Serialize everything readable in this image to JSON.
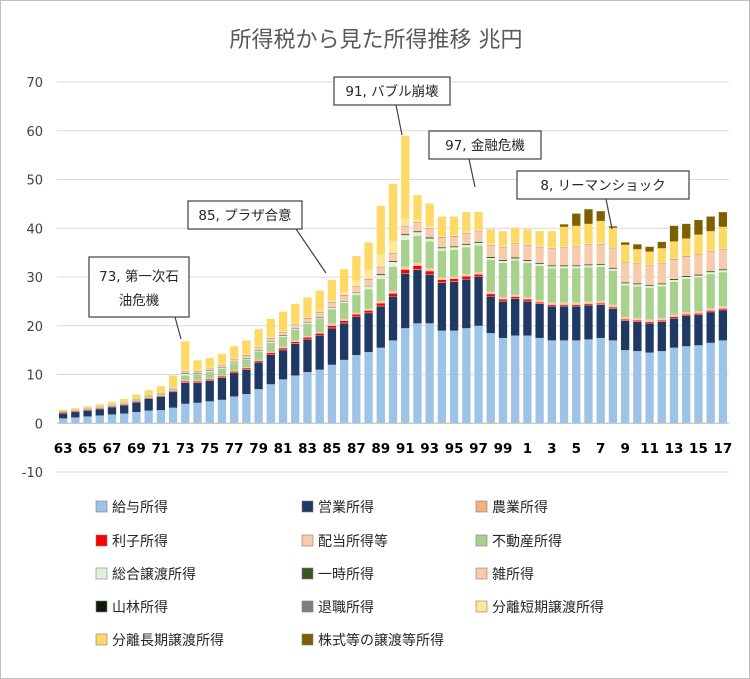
{
  "chart_data": {
    "type": "bar",
    "stacked": true,
    "title": "所得税から見た所得推移 兆円",
    "ylim": [
      -10,
      70
    ],
    "yticks": [
      -10,
      0,
      10,
      20,
      30,
      40,
      50,
      60,
      70
    ],
    "grid": true,
    "legend_position": "bottom",
    "categories": [
      "63",
      "64",
      "65",
      "66",
      "67",
      "68",
      "69",
      "70",
      "71",
      "72",
      "73",
      "74",
      "75",
      "76",
      "77",
      "78",
      "79",
      "80",
      "81",
      "82",
      "83",
      "84",
      "85",
      "86",
      "87",
      "88",
      "89",
      "90",
      "91",
      "92",
      "93",
      "94",
      "95",
      "96",
      "97",
      "98",
      "99",
      "00",
      "1",
      "2",
      "3",
      "4",
      "5",
      "6",
      "7",
      "8",
      "9",
      "10",
      "11",
      "12",
      "13",
      "14",
      "15",
      "16",
      "17"
    ],
    "x_tick_labels": [
      "63",
      "65",
      "67",
      "69",
      "71",
      "73",
      "75",
      "77",
      "79",
      "81",
      "83",
      "85",
      "87",
      "89",
      "91",
      "93",
      "95",
      "97",
      "99",
      "1",
      "3",
      "5",
      "7",
      "9",
      "11",
      "13",
      "15",
      "17"
    ],
    "series": [
      {
        "name": "給与所得",
        "color": "#9dc3e6",
        "values": [
          1.0,
          1.2,
          1.4,
          1.6,
          1.8,
          2.0,
          2.3,
          2.6,
          2.7,
          3.2,
          4.0,
          4.2,
          4.5,
          4.8,
          5.5,
          6.0,
          7.0,
          8.0,
          9.0,
          9.8,
          10.5,
          11.0,
          12.0,
          13.0,
          14.0,
          14.6,
          15.5,
          17.0,
          19.5,
          20.5,
          20.5,
          19.0,
          19.0,
          19.5,
          20.0,
          18.5,
          17.5,
          18.0,
          18.0,
          17.5,
          17.0,
          17.0,
          17.0,
          17.2,
          17.5,
          17.0,
          15.0,
          14.8,
          14.5,
          14.8,
          15.5,
          15.8,
          16.0,
          16.5,
          17.0
        ]
      },
      {
        "name": "営業所得",
        "color": "#1f3864",
        "values": [
          1.0,
          1.1,
          1.2,
          1.3,
          1.5,
          1.7,
          2.0,
          2.4,
          2.7,
          3.2,
          4.3,
          4.1,
          4.2,
          4.5,
          4.8,
          5.0,
          5.5,
          6.0,
          6.0,
          6.5,
          6.7,
          7.0,
          7.5,
          7.5,
          7.8,
          8.0,
          8.5,
          9.0,
          11.2,
          11.0,
          10.0,
          9.8,
          10.0,
          10.0,
          10.0,
          7.5,
          7.5,
          7.5,
          7.0,
          7.0,
          7.0,
          7.0,
          7.0,
          7.0,
          6.8,
          6.5,
          6.0,
          6.0,
          6.0,
          6.0,
          6.0,
          6.2,
          6.2,
          6.3,
          6.2
        ]
      },
      {
        "name": "農業所得",
        "color": "#f4b183",
        "values": [
          0.1,
          0.1,
          0.1,
          0.1,
          0.1,
          0.1,
          0.1,
          0.1,
          0.1,
          0.1,
          0.1,
          0.1,
          0.1,
          0.1,
          0.1,
          0.1,
          0.1,
          0.1,
          0.1,
          0.1,
          0.1,
          0.1,
          0.1,
          0.1,
          0.1,
          0.1,
          0.1,
          0.1,
          0.1,
          0.1,
          0.1,
          0.1,
          0.1,
          0.1,
          0.1,
          0.1,
          0.1,
          0.1,
          0.1,
          0.1,
          0.1,
          0.1,
          0.1,
          0.1,
          0.1,
          0.1,
          0.1,
          0.1,
          0.1,
          0.1,
          0.1,
          0.1,
          0.1,
          0.1,
          0.1
        ]
      },
      {
        "name": "利子所得",
        "color": "#ff0000",
        "values": [
          0.1,
          0.1,
          0.1,
          0.1,
          0.1,
          0.1,
          0.1,
          0.1,
          0.1,
          0.1,
          0.2,
          0.2,
          0.2,
          0.2,
          0.2,
          0.2,
          0.2,
          0.3,
          0.3,
          0.3,
          0.3,
          0.3,
          0.4,
          0.4,
          0.4,
          0.4,
          0.5,
          0.5,
          0.7,
          0.7,
          0.6,
          0.5,
          0.5,
          0.5,
          0.4,
          0.4,
          0.3,
          0.3,
          0.3,
          0.2,
          0.2,
          0.2,
          0.2,
          0.2,
          0.2,
          0.2,
          0.2,
          0.2,
          0.2,
          0.2,
          0.2,
          0.2,
          0.2,
          0.2,
          0.2
        ]
      },
      {
        "name": "配当所得等",
        "color": "#f8cbad",
        "values": [
          0.1,
          0.1,
          0.1,
          0.1,
          0.1,
          0.1,
          0.1,
          0.1,
          0.1,
          0.1,
          0.2,
          0.2,
          0.2,
          0.2,
          0.2,
          0.2,
          0.2,
          0.3,
          0.3,
          0.3,
          0.3,
          0.3,
          0.4,
          0.4,
          0.4,
          0.4,
          0.5,
          0.5,
          0.6,
          0.6,
          0.6,
          0.5,
          0.5,
          0.5,
          0.5,
          0.5,
          0.5,
          0.5,
          0.5,
          0.5,
          0.5,
          0.5,
          0.5,
          0.5,
          0.5,
          0.5,
          0.5,
          0.5,
          0.5,
          0.5,
          0.5,
          0.5,
          0.5,
          0.5,
          0.5
        ]
      },
      {
        "name": "不動産所得",
        "color": "#a9d18e",
        "values": [
          0.2,
          0.2,
          0.2,
          0.3,
          0.3,
          0.3,
          0.4,
          0.4,
          0.5,
          0.5,
          1.0,
          1.2,
          1.3,
          1.4,
          1.5,
          1.6,
          1.7,
          1.8,
          2.0,
          2.2,
          2.5,
          2.8,
          3.0,
          3.3,
          3.6,
          4.0,
          4.5,
          5.0,
          5.5,
          5.5,
          5.5,
          5.5,
          5.5,
          5.5,
          5.5,
          6.5,
          7.0,
          7.0,
          7.0,
          7.0,
          7.0,
          7.0,
          7.0,
          7.0,
          7.0,
          7.0,
          6.5,
          6.5,
          6.5,
          6.5,
          6.7,
          6.8,
          6.9,
          7.0,
          7.0
        ]
      },
      {
        "name": "総合譲渡所得",
        "color": "#e2f0d9",
        "values": [
          0,
          0,
          0,
          0,
          0,
          0,
          0,
          0,
          0,
          0.1,
          0.3,
          0.2,
          0.2,
          0.2,
          0.2,
          0.2,
          0.2,
          0.2,
          0.2,
          0.2,
          0.2,
          0.2,
          0.3,
          0.3,
          0.4,
          0.6,
          0.8,
          1.0,
          1.0,
          0.8,
          0.6,
          0.5,
          0.5,
          0.5,
          0.5,
          0.4,
          0.4,
          0.4,
          0.4,
          0.4,
          0.4,
          0.4,
          0.4,
          0.4,
          0.4,
          0.4,
          0.4,
          0.4,
          0.4,
          0.4,
          0.4,
          0.4,
          0.4,
          0.4,
          0.4
        ]
      },
      {
        "name": "一時所得",
        "color": "#375623",
        "values": [
          0,
          0,
          0,
          0,
          0,
          0,
          0,
          0,
          0,
          0,
          0.1,
          0.1,
          0.1,
          0.1,
          0.1,
          0.1,
          0.1,
          0.1,
          0.1,
          0.1,
          0.1,
          0.1,
          0.1,
          0.1,
          0.1,
          0.1,
          0.2,
          0.2,
          0.2,
          0.2,
          0.2,
          0.2,
          0.2,
          0.2,
          0.2,
          0.2,
          0.2,
          0.2,
          0.2,
          0.2,
          0.2,
          0.2,
          0.2,
          0.2,
          0.2,
          0.2,
          0.2,
          0.2,
          0.2,
          0.2,
          0.2,
          0.2,
          0.2,
          0.2,
          0.2
        ]
      },
      {
        "name": "雑所得",
        "color": "#f8cbad",
        "values": [
          0.1,
          0.1,
          0.1,
          0.1,
          0.1,
          0.1,
          0.1,
          0.1,
          0.1,
          0.2,
          0.3,
          0.3,
          0.3,
          0.4,
          0.4,
          0.5,
          0.5,
          0.6,
          0.6,
          0.7,
          0.8,
          0.9,
          1.0,
          1.1,
          1.2,
          1.3,
          1.4,
          1.5,
          1.6,
          1.7,
          1.8,
          1.9,
          2.0,
          2.1,
          2.2,
          2.4,
          2.6,
          2.8,
          3.0,
          3.2,
          3.4,
          3.6,
          3.8,
          4.0,
          4.0,
          4.0,
          4.0,
          4.0,
          4.0,
          4.0,
          4.0,
          4.0,
          4.0,
          4.0,
          4.0
        ]
      },
      {
        "name": "山林所得",
        "color": "#0d1b0d",
        "values": [
          0,
          0,
          0,
          0,
          0,
          0,
          0,
          0,
          0,
          0,
          0,
          0,
          0,
          0,
          0,
          0,
          0,
          0,
          0,
          0,
          0,
          0,
          0,
          0,
          0,
          0,
          0,
          0,
          0,
          0,
          0,
          0,
          0,
          0,
          0,
          0,
          0,
          0,
          0,
          0,
          0,
          0,
          0,
          0,
          0,
          0,
          0,
          0,
          0,
          0,
          0,
          0,
          0,
          0,
          0
        ]
      },
      {
        "name": "退職所得",
        "color": "#7f7f7f",
        "values": [
          0,
          0,
          0,
          0,
          0,
          0,
          0,
          0,
          0,
          0,
          0.1,
          0.1,
          0.1,
          0.1,
          0.1,
          0.1,
          0.1,
          0.1,
          0.1,
          0.1,
          0.1,
          0.1,
          0.1,
          0.1,
          0.1,
          0.1,
          0.1,
          0.1,
          0.1,
          0.1,
          0.1,
          0.1,
          0.1,
          0.1,
          0.1,
          0.1,
          0.1,
          0.1,
          0.1,
          0.1,
          0.1,
          0.1,
          0.1,
          0.1,
          0.1,
          0.1,
          0.1,
          0.1,
          0.1,
          0.1,
          0.1,
          0.1,
          0.1,
          0.1,
          0.1
        ]
      },
      {
        "name": "分離短期譲渡所得",
        "color": "#ffe699",
        "values": [
          0,
          0,
          0,
          0,
          0,
          0,
          0,
          0,
          0,
          0,
          0.4,
          0.2,
          0.2,
          0.2,
          0.2,
          0.2,
          0.2,
          0.2,
          0.2,
          0.2,
          0.2,
          0.2,
          0.3,
          0.6,
          1.2,
          2.0,
          2.5,
          2.5,
          1.5,
          0.6,
          0.4,
          0.3,
          0.3,
          0.3,
          0.2,
          0.2,
          0.2,
          0.2,
          0.2,
          0.2,
          0.2,
          0.2,
          0.2,
          0.2,
          0.2,
          0.1,
          0.1,
          0.1,
          0.1,
          0.1,
          0.1,
          0.1,
          0.1,
          0.1,
          0.1
        ]
      },
      {
        "name": "分離長期譲渡所得",
        "color": "#ffd966",
        "values": [
          0.2,
          0.2,
          0.3,
          0.3,
          0.4,
          0.6,
          0.8,
          1.0,
          1.3,
          2.3,
          5.8,
          2.0,
          2.0,
          2.0,
          2.5,
          2.8,
          3.5,
          3.7,
          4.0,
          4.0,
          4.0,
          4.2,
          4.2,
          4.7,
          5.0,
          5.5,
          10.0,
          11.7,
          17.0,
          5.0,
          4.7,
          4.0,
          3.7,
          4.0,
          3.7,
          3.0,
          3.0,
          3.0,
          3.0,
          3.0,
          3.3,
          4.0,
          4.0,
          4.0,
          4.5,
          4.0,
          3.5,
          2.8,
          2.6,
          3.0,
          3.5,
          3.5,
          4.0,
          4.0,
          4.5
        ]
      },
      {
        "name": "株式等の譲渡等所得",
        "color": "#7f6000",
        "values": [
          0,
          0,
          0,
          0,
          0,
          0,
          0,
          0,
          0,
          0,
          0,
          0,
          0,
          0,
          0,
          0,
          0,
          0,
          0,
          0,
          0,
          0,
          0,
          0,
          0,
          0,
          0,
          0,
          0,
          0,
          0,
          0,
          0,
          0,
          0,
          0,
          0,
          0,
          0,
          0,
          0,
          0.5,
          2.5,
          3.0,
          2.0,
          0.3,
          0.5,
          1.0,
          1.0,
          1.3,
          3.2,
          3.0,
          3.0,
          3.0,
          3.0
        ]
      }
    ],
    "annotations": [
      {
        "label": "73, 第一次石",
        "label2": "油危機",
        "category": "73"
      },
      {
        "label": "85, プラザ合意",
        "category": "85"
      },
      {
        "label": "91, バブル崩壊",
        "category": "91"
      },
      {
        "label": "97, 金融危機",
        "category": "97"
      },
      {
        "label": "8, リーマンショック",
        "category": "8"
      }
    ]
  }
}
